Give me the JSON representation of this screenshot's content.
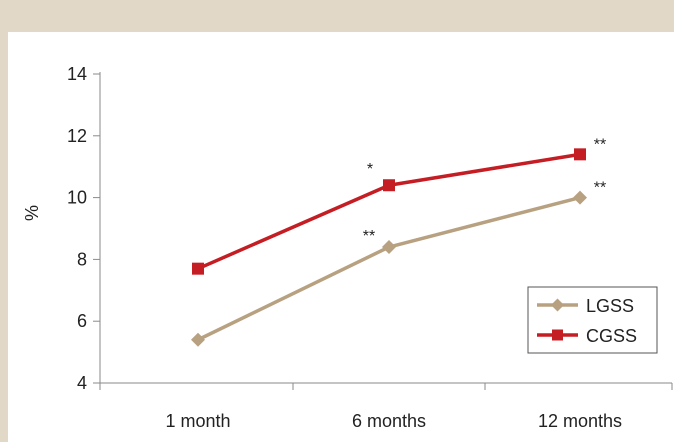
{
  "chart_data": {
    "type": "line",
    "title": "",
    "xlabel": "",
    "ylabel": "%",
    "categories": [
      "1 month",
      "6 months",
      "12 months"
    ],
    "ylim": [
      4,
      14
    ],
    "yticks": [
      4,
      6,
      8,
      10,
      12,
      14
    ],
    "grid": false,
    "legend_position": "bottom-right",
    "series": [
      {
        "name": "LGSS",
        "color": "#b8a180",
        "marker": "diamond",
        "values": [
          5.4,
          8.4,
          10.0
        ],
        "annotations": [
          "",
          "**",
          "**"
        ]
      },
      {
        "name": "CGSS",
        "color": "#c41e24",
        "marker": "square",
        "values": [
          7.7,
          10.4,
          11.4
        ],
        "annotations": [
          "",
          "*",
          "**"
        ]
      }
    ]
  }
}
